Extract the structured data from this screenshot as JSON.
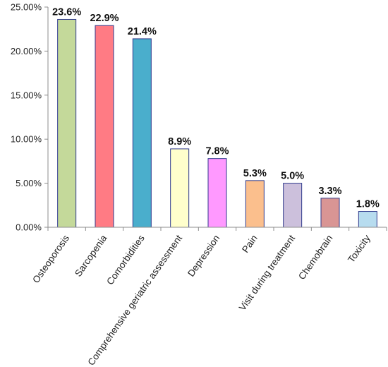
{
  "chart_data": {
    "type": "bar",
    "categories": [
      "Osteoporosis",
      "Sarcopenia",
      "Comorbidities",
      "Comprehensive geriatric assessment",
      "Depression",
      "Pain",
      "Visit during treatment",
      "Chemobrain",
      "Toxicity"
    ],
    "values": [
      23.6,
      22.9,
      21.4,
      8.9,
      7.8,
      5.3,
      5.0,
      3.3,
      1.8
    ],
    "data_labels": [
      "23.6%",
      "22.9%",
      "21.4%",
      "8.9%",
      "7.8%",
      "5.3%",
      "5.0%",
      "3.3%",
      "1.8%"
    ],
    "bar_colors": [
      "#c4d99a",
      "#ff7b84",
      "#4aaecc",
      "#ffffcc",
      "#ff99ff",
      "#fbbf8d",
      "#ccc0dc",
      "#d99594",
      "#b7dcef"
    ],
    "y_ticks": [
      0,
      5,
      10,
      15,
      20,
      25
    ],
    "y_tick_labels": [
      "0.00%",
      "5.00%",
      "10.00%",
      "15.00%",
      "20.00%",
      "25.00%"
    ],
    "ylim": [
      0,
      25
    ],
    "title": "",
    "xlabel": "",
    "ylabel": "",
    "grid": false,
    "legend": false
  }
}
